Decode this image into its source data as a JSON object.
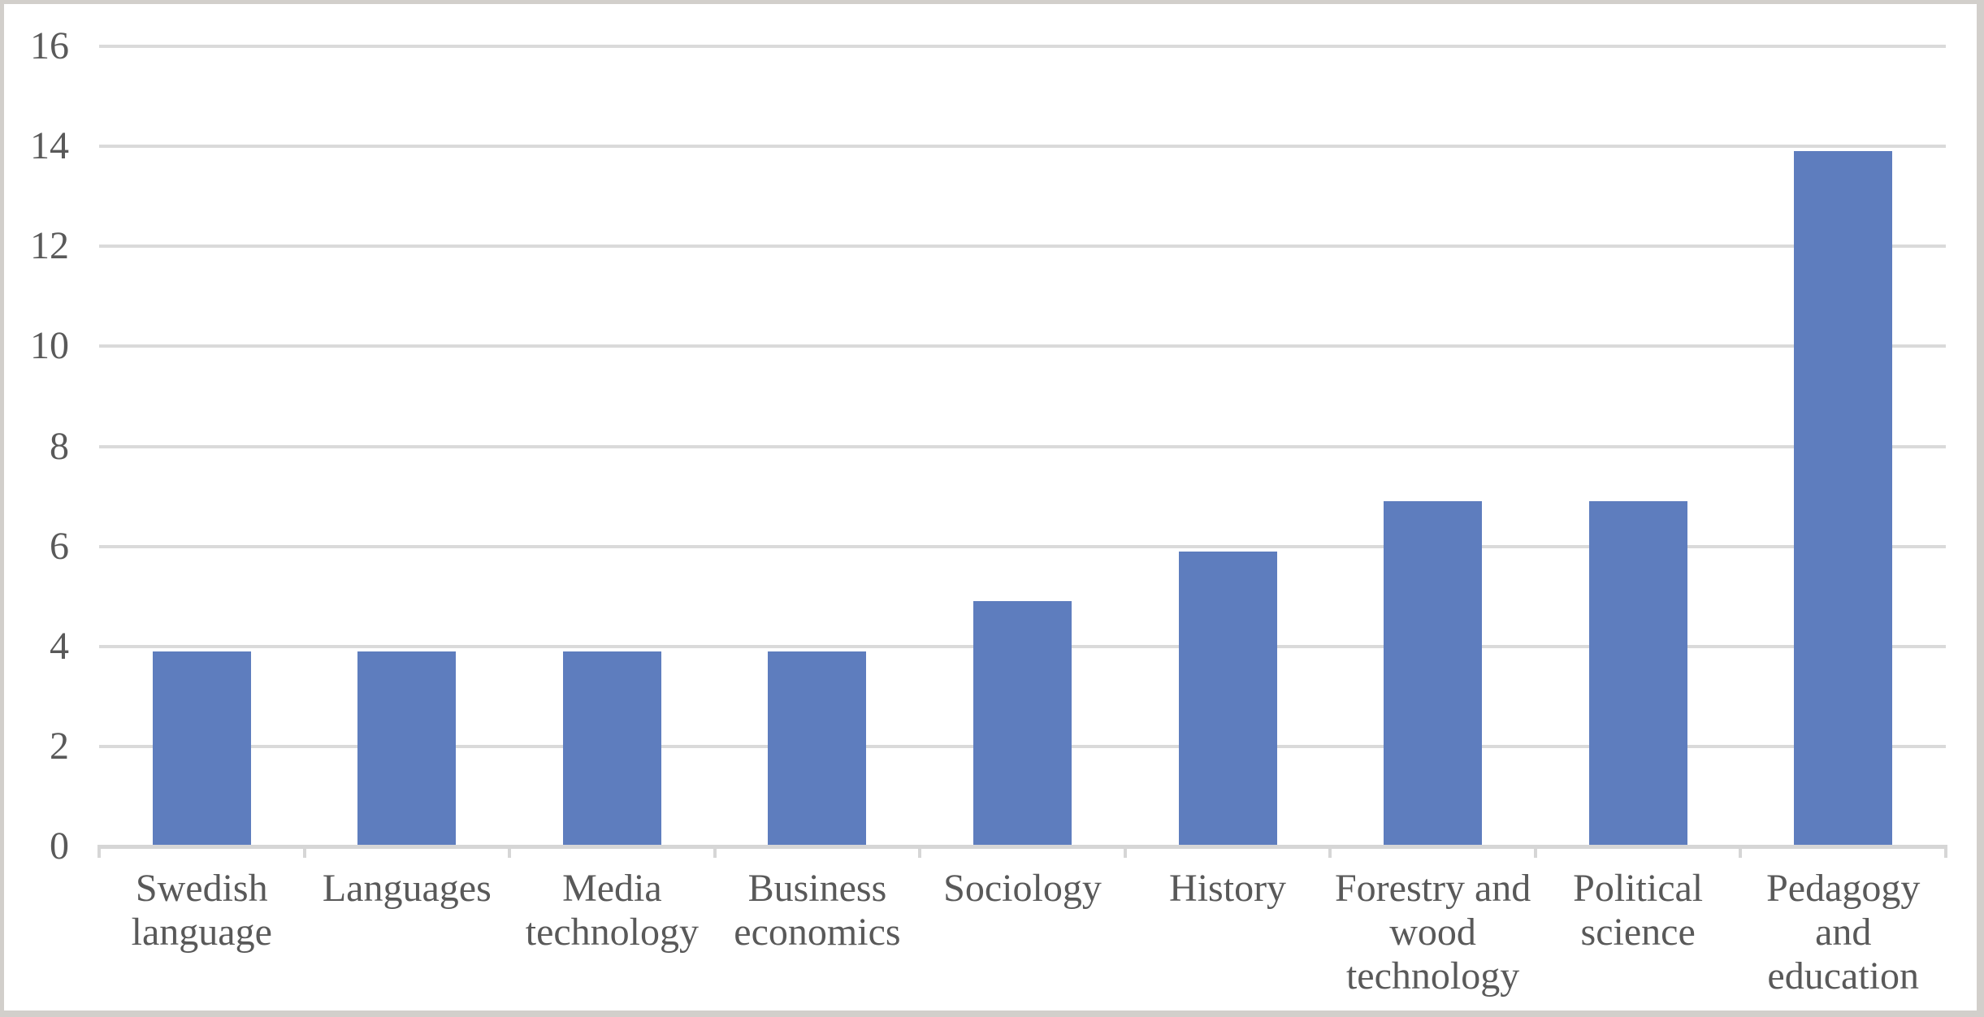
{
  "chart_data": {
    "type": "bar",
    "title": "",
    "xlabel": "",
    "ylabel": "",
    "categories": [
      "Swedish language",
      "Languages",
      "Media technology",
      "Business economics",
      "Sociology",
      "History",
      "Forestry and wood technology",
      "Political science",
      "Pedagogy and education"
    ],
    "values": [
      3.9,
      3.9,
      3.9,
      3.9,
      4.9,
      5.9,
      6.9,
      6.9,
      13.9
    ],
    "ylim": [
      0,
      16
    ],
    "ytick_step": 2,
    "ytick_labels": [
      "0",
      "2",
      "4",
      "6",
      "8",
      "10",
      "12",
      "14",
      "16"
    ],
    "grid": true,
    "legend": "none",
    "colors": {
      "bar": "#5E7DBE",
      "gridline": "#DADADA",
      "axis_line": "#D6D6D6",
      "tick": "#D6D6D6",
      "axis_text": "#595959",
      "frame_border": "#D2CFCB",
      "background": "#FFFFFF"
    }
  }
}
